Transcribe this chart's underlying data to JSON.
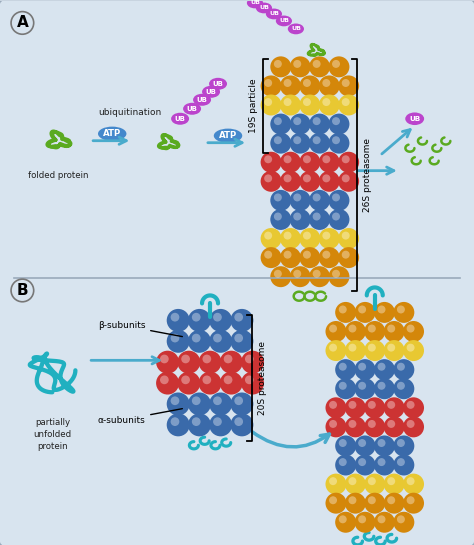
{
  "bg_outer": "#c8d4e0",
  "panel_bg": "#d8e4ef",
  "border_color": "#9aaabb",
  "orange": "#d4870a",
  "yellow": "#e8c832",
  "blue": "#3a6aaa",
  "red": "#cc3333",
  "green": "#5aaa20",
  "teal": "#20b0c0",
  "purple": "#bb44cc",
  "atp_blue": "#4488cc",
  "arrow_blue": "#4aabcc",
  "text_folded": "folded protein",
  "text_ubiq": "ubiquitination",
  "text_19S": "19S particle",
  "text_26S": "26S proteasome",
  "text_UB": "UB",
  "text_ATP": "ATP",
  "text_partial": "partially\nunfolded\nprotein",
  "text_beta": "β-subunits",
  "text_alpha": "α-subunits",
  "text_20S": "20S proteasome"
}
